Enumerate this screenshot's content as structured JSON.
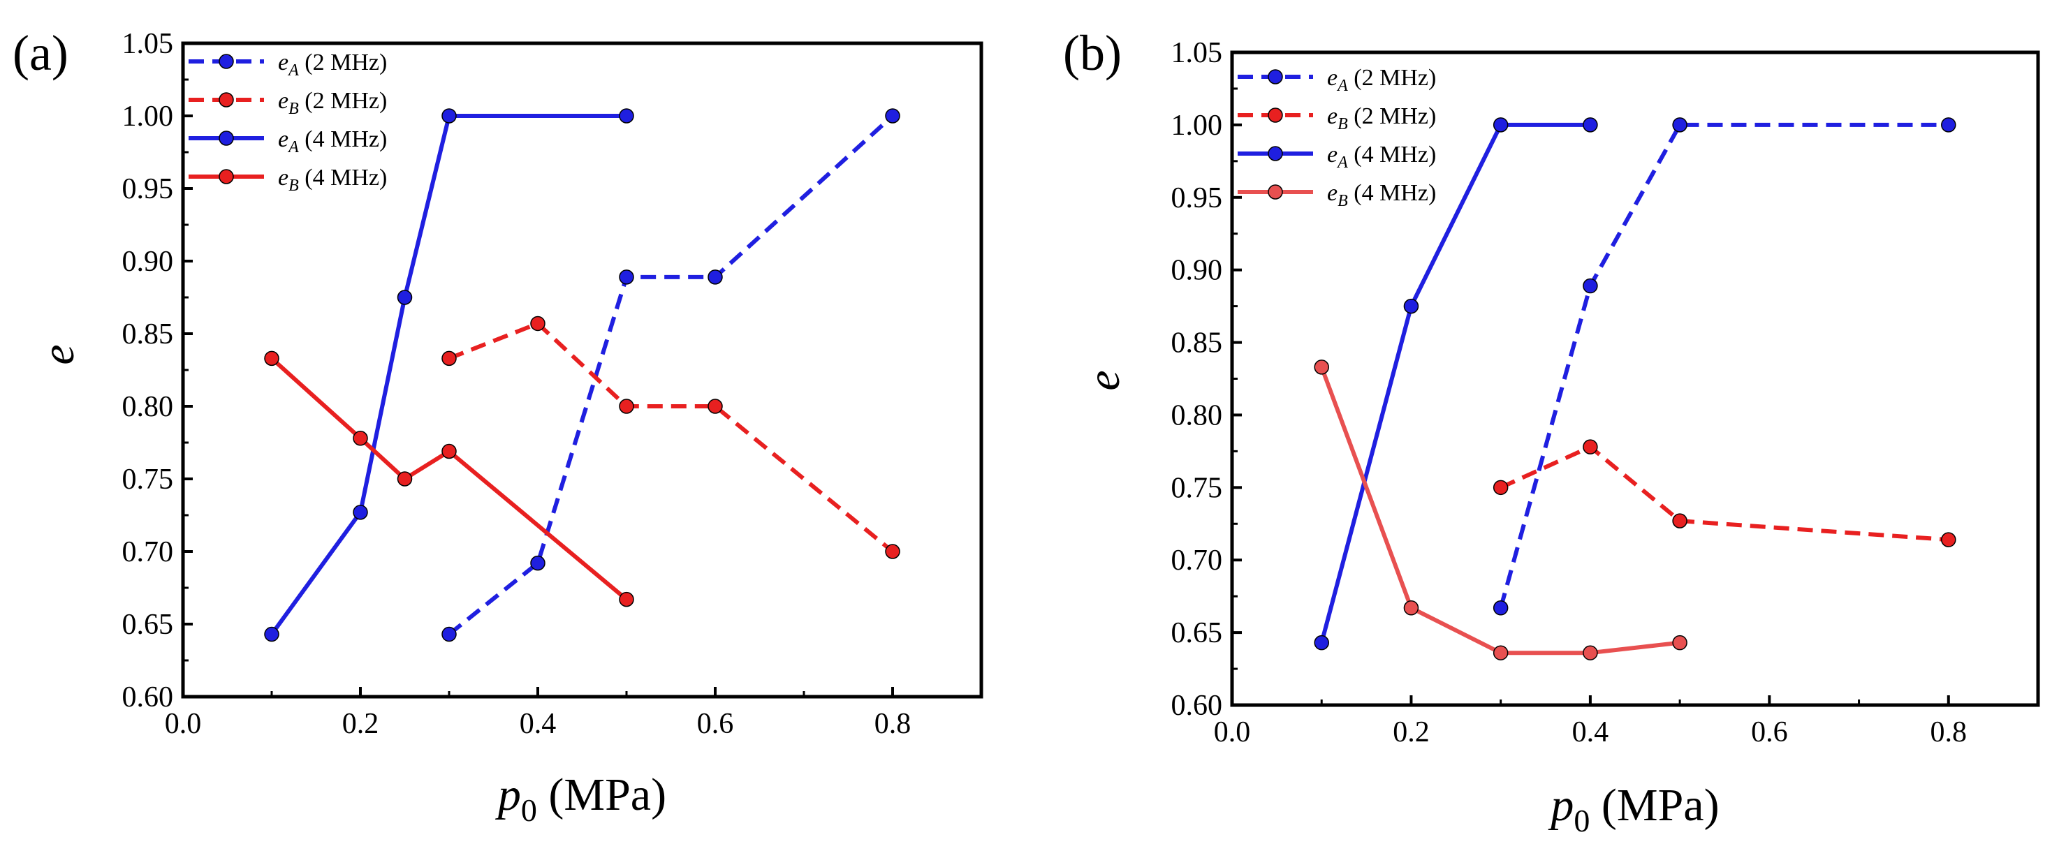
{
  "chart_data": [
    {
      "type": "line",
      "panel_label": "(a)",
      "xlabel": {
        "var": "p",
        "sub": "0",
        "unit": " (MPa)"
      },
      "ylabel": "e",
      "xlim": [
        0.0,
        0.9
      ],
      "ylim": [
        0.6,
        1.05
      ],
      "xticks": [
        0.0,
        0.2,
        0.4,
        0.6,
        0.8
      ],
      "xtick_labels": [
        "0.0",
        "0.2",
        "0.4",
        "0.6",
        "0.8"
      ],
      "yticks": [
        0.6,
        0.65,
        0.7,
        0.75,
        0.8,
        0.85,
        0.9,
        0.95,
        1.0,
        1.05
      ],
      "ytick_labels": [
        "0.60",
        "0.65",
        "0.70",
        "0.75",
        "0.80",
        "0.85",
        "0.90",
        "0.95",
        "1.00",
        "1.05"
      ],
      "legend_position": "top-left",
      "series": [
        {
          "name": "eA (2 MHz)",
          "sym": "e",
          "sub": "A",
          "rest": " (2 MHz)",
          "color": "#1f1fe0",
          "dashed": true,
          "x": [
            0.3,
            0.4,
            0.5,
            0.6,
            0.8
          ],
          "y": [
            0.643,
            0.692,
            0.889,
            0.889,
            1.0
          ]
        },
        {
          "name": "eB (2 MHz)",
          "sym": "e",
          "sub": "B",
          "rest": " (2 MHz)",
          "color": "#e82020",
          "dashed": true,
          "x": [
            0.3,
            0.4,
            0.5,
            0.6,
            0.8
          ],
          "y": [
            0.833,
            0.857,
            0.8,
            0.8,
            0.7
          ]
        },
        {
          "name": "eA (4 MHz)",
          "sym": "e",
          "sub": "A",
          "rest": " (4 MHz)",
          "color": "#1f1fe0",
          "dashed": false,
          "x": [
            0.1,
            0.2,
            0.25,
            0.3,
            0.5
          ],
          "y": [
            0.643,
            0.727,
            0.875,
            1.0,
            1.0
          ]
        },
        {
          "name": "eB (4 MHz)",
          "sym": "e",
          "sub": "B",
          "rest": " (4 MHz)",
          "color": "#e82020",
          "dashed": false,
          "x": [
            0.1,
            0.2,
            0.25,
            0.3,
            0.5
          ],
          "y": [
            0.833,
            0.778,
            0.75,
            0.769,
            0.667
          ]
        }
      ]
    },
    {
      "type": "line",
      "panel_label": "(b)",
      "xlabel": {
        "var": "p",
        "sub": "0",
        "unit": " (MPa)"
      },
      "ylabel": "e",
      "xlim": [
        0.0,
        0.9
      ],
      "ylim": [
        0.6,
        1.05
      ],
      "xticks": [
        0.0,
        0.2,
        0.4,
        0.6,
        0.8
      ],
      "xtick_labels": [
        "0.0",
        "0.2",
        "0.4",
        "0.6",
        "0.8"
      ],
      "yticks": [
        0.6,
        0.65,
        0.7,
        0.75,
        0.8,
        0.85,
        0.9,
        0.95,
        1.0,
        1.05
      ],
      "ytick_labels": [
        "0.60",
        "0.65",
        "0.70",
        "0.75",
        "0.80",
        "0.85",
        "0.90",
        "0.95",
        "1.00",
        "1.05"
      ],
      "legend_position": "top-left",
      "series": [
        {
          "name": "eA (2 MHz)",
          "sym": "e",
          "sub": "A",
          "rest": " (2 MHz)",
          "color": "#1f1fe0",
          "dashed": true,
          "x": [
            0.3,
            0.4,
            0.5,
            0.8
          ],
          "y": [
            0.667,
            0.889,
            1.0,
            1.0
          ]
        },
        {
          "name": "eB (2 MHz)",
          "sym": "e",
          "sub": "B",
          "rest": " (2 MHz)",
          "color": "#e82020",
          "dashed": true,
          "x": [
            0.3,
            0.4,
            0.5,
            0.8
          ],
          "y": [
            0.75,
            0.778,
            0.727,
            0.714
          ]
        },
        {
          "name": "eA (4 MHz)",
          "sym": "e",
          "sub": "A",
          "rest": " (4 MHz)",
          "color": "#1f1fe0",
          "dashed": false,
          "x": [
            0.1,
            0.2,
            0.3,
            0.4
          ],
          "y": [
            0.643,
            0.875,
            1.0,
            1.0
          ]
        },
        {
          "name": "eB (4 MHz)",
          "sym": "e",
          "sub": "B",
          "rest": " (4 MHz)",
          "color": "#e85050",
          "dashed": false,
          "x": [
            0.1,
            0.2,
            0.3,
            0.4,
            0.5
          ],
          "y": [
            0.833,
            0.667,
            0.636,
            0.636,
            0.643
          ]
        }
      ]
    }
  ]
}
